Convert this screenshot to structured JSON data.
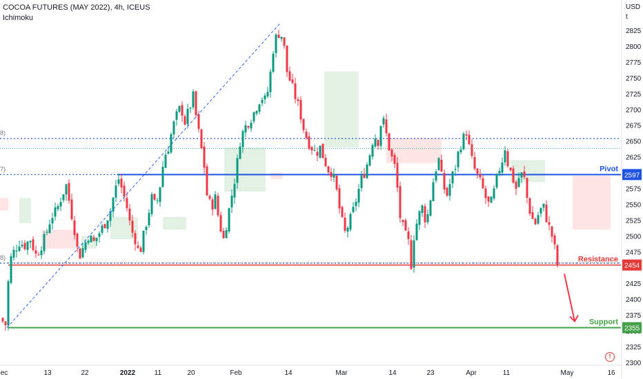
{
  "header": {
    "title": "COCOA FUTURES (MAY 2022), 4h, ICEUS",
    "indicator": "Ichimoku",
    "currency": "USD",
    "currency_sub": "t"
  },
  "chart_data": {
    "type": "candlestick",
    "y_axis": {
      "ylim": [
        2295,
        2850
      ],
      "ticks": [
        2825,
        2800,
        2775,
        2750,
        2725,
        2700,
        2675,
        2650,
        2625,
        2600,
        2575,
        2550,
        2525,
        2500,
        2475,
        2450,
        2425,
        2400,
        2375,
        2350,
        2325,
        2300
      ]
    },
    "x_axis": {
      "ticks": [
        {
          "label": "ec",
          "bold": false
        },
        {
          "label": "13",
          "bold": false
        },
        {
          "label": "22",
          "bold": false
        },
        {
          "label": "2022",
          "bold": true
        },
        {
          "label": "11",
          "bold": false
        },
        {
          "label": "20",
          "bold": false
        },
        {
          "label": "Feb",
          "bold": false
        },
        {
          "label": "14",
          "bold": false
        },
        {
          "label": "Mar",
          "bold": false
        },
        {
          "label": "14",
          "bold": false
        },
        {
          "label": "23",
          "bold": false
        },
        {
          "label": "Apr",
          "bold": false
        },
        {
          "label": "11",
          "bold": false
        },
        {
          "label": "May",
          "bold": false
        },
        {
          "label": "16",
          "bold": false
        }
      ]
    },
    "levels": [
      {
        "name": "Pivot",
        "value": 2597,
        "label": "2597",
        "color": "#1e53e5"
      },
      {
        "name": "Resistance",
        "value": 2454,
        "label": "2454",
        "color": "#e53935"
      },
      {
        "name": "Support",
        "value": 2355,
        "label": "2355",
        "color": "#43a047"
      }
    ],
    "fib_levels": [
      {
        "value": 2654,
        "left_label": "8)"
      },
      {
        "value": 2597,
        "left_label": "7)"
      },
      {
        "value": 2457,
        "left_label": "8)"
      }
    ],
    "guide_line": {
      "value": 2638
    },
    "trend_line": {
      "from": 2355,
      "to": 2835
    },
    "forecast_arrow": {
      "from": 2440,
      "to": 2365
    },
    "colors": {
      "up": "#26a69a",
      "up_body": "#089981",
      "down": "#f23645",
      "cloud_bull": "#dff0e0",
      "cloud_bear": "#fde2e2",
      "pivot": "#1e53e5",
      "resistance": "#e53935",
      "support": "#43a047",
      "trend": "#2962ff"
    },
    "candle_path": [
      [
        0,
        2370
      ],
      [
        8,
        2360
      ],
      [
        14,
        2460
      ],
      [
        20,
        2475
      ],
      [
        28,
        2490
      ],
      [
        36,
        2485
      ],
      [
        44,
        2495
      ],
      [
        52,
        2470
      ],
      [
        58,
        2480
      ],
      [
        66,
        2500
      ],
      [
        74,
        2530
      ],
      [
        82,
        2540
      ],
      [
        90,
        2565
      ],
      [
        96,
        2580
      ],
      [
        102,
        2545
      ],
      [
        108,
        2510
      ],
      [
        114,
        2465
      ],
      [
        120,
        2480
      ],
      [
        128,
        2500
      ],
      [
        136,
        2490
      ],
      [
        144,
        2505
      ],
      [
        152,
        2520
      ],
      [
        160,
        2540
      ],
      [
        166,
        2570
      ],
      [
        172,
        2590
      ],
      [
        178,
        2570
      ],
      [
        184,
        2545
      ],
      [
        190,
        2510
      ],
      [
        196,
        2495
      ],
      [
        202,
        2470
      ],
      [
        208,
        2500
      ],
      [
        214,
        2530
      ],
      [
        220,
        2560
      ],
      [
        226,
        2545
      ],
      [
        232,
        2580
      ],
      [
        238,
        2625
      ],
      [
        244,
        2640
      ],
      [
        250,
        2670
      ],
      [
        256,
        2690
      ],
      [
        262,
        2705
      ],
      [
        268,
        2680
      ],
      [
        274,
        2700
      ],
      [
        280,
        2720
      ],
      [
        284,
        2690
      ],
      [
        290,
        2650
      ],
      [
        296,
        2610
      ],
      [
        300,
        2565
      ],
      [
        306,
        2545
      ],
      [
        312,
        2560
      ],
      [
        318,
        2520
      ],
      [
        324,
        2495
      ],
      [
        330,
        2530
      ],
      [
        336,
        2565
      ],
      [
        342,
        2600
      ],
      [
        348,
        2650
      ],
      [
        354,
        2670
      ],
      [
        360,
        2680
      ],
      [
        366,
        2690
      ],
      [
        372,
        2705
      ],
      [
        378,
        2720
      ],
      [
        384,
        2715
      ],
      [
        390,
        2735
      ],
      [
        394,
        2780
      ],
      [
        398,
        2810
      ],
      [
        404,
        2820
      ],
      [
        410,
        2815
      ],
      [
        416,
        2760
      ],
      [
        422,
        2740
      ],
      [
        428,
        2720
      ],
      [
        434,
        2700
      ],
      [
        440,
        2670
      ],
      [
        446,
        2650
      ],
      [
        452,
        2640
      ],
      [
        458,
        2630
      ],
      [
        464,
        2640
      ],
      [
        470,
        2620
      ],
      [
        476,
        2605
      ],
      [
        482,
        2600
      ],
      [
        488,
        2570
      ],
      [
        494,
        2530
      ],
      [
        500,
        2505
      ],
      [
        506,
        2520
      ],
      [
        512,
        2540
      ],
      [
        518,
        2565
      ],
      [
        524,
        2590
      ],
      [
        530,
        2605
      ],
      [
        536,
        2630
      ],
      [
        542,
        2660
      ],
      [
        548,
        2650
      ],
      [
        554,
        2690
      ],
      [
        560,
        2660
      ],
      [
        566,
        2630
      ],
      [
        572,
        2610
      ],
      [
        576,
        2575
      ],
      [
        580,
        2530
      ],
      [
        586,
        2505
      ],
      [
        592,
        2490
      ],
      [
        596,
        2455
      ],
      [
        600,
        2500
      ],
      [
        606,
        2530
      ],
      [
        612,
        2545
      ],
      [
        618,
        2520
      ],
      [
        624,
        2560
      ],
      [
        630,
        2600
      ],
      [
        636,
        2620
      ],
      [
        642,
        2580
      ],
      [
        648,
        2565
      ],
      [
        654,
        2590
      ],
      [
        660,
        2610
      ],
      [
        666,
        2640
      ],
      [
        672,
        2655
      ],
      [
        676,
        2665
      ],
      [
        680,
        2640
      ],
      [
        686,
        2610
      ],
      [
        692,
        2595
      ],
      [
        698,
        2580
      ],
      [
        704,
        2560
      ],
      [
        710,
        2545
      ],
      [
        716,
        2570
      ],
      [
        722,
        2600
      ],
      [
        728,
        2620
      ],
      [
        732,
        2640
      ],
      [
        736,
        2615
      ],
      [
        742,
        2595
      ],
      [
        748,
        2575
      ],
      [
        754,
        2600
      ],
      [
        760,
        2590
      ],
      [
        764,
        2560
      ],
      [
        770,
        2530
      ],
      [
        776,
        2520
      ],
      [
        782,
        2540
      ],
      [
        788,
        2545
      ],
      [
        794,
        2520
      ],
      [
        800,
        2500
      ],
      [
        806,
        2470
      ],
      [
        810,
        2440
      ]
    ],
    "cloud": [
      {
        "from": 0,
        "to": 12,
        "top": 2560,
        "bottom": 2540,
        "bull": false
      },
      {
        "from": 28,
        "to": 45,
        "top": 2560,
        "bottom": 2520,
        "bull": true
      },
      {
        "from": 60,
        "to": 110,
        "top": 2510,
        "bottom": 2480,
        "bull": false
      },
      {
        "from": 118,
        "to": 140,
        "top": 2500,
        "bottom": 2480,
        "bull": true
      },
      {
        "from": 160,
        "to": 200,
        "top": 2530,
        "bottom": 2495,
        "bull": true
      },
      {
        "from": 236,
        "to": 270,
        "top": 2530,
        "bottom": 2510,
        "bull": true
      },
      {
        "from": 325,
        "to": 385,
        "top": 2640,
        "bottom": 2570,
        "bull": true
      },
      {
        "from": 392,
        "to": 410,
        "top": 2600,
        "bottom": 2590,
        "bull": false
      },
      {
        "from": 470,
        "to": 520,
        "top": 2760,
        "bottom": 2640,
        "bull": true
      },
      {
        "from": 560,
        "to": 640,
        "top": 2655,
        "bottom": 2615,
        "bull": false
      },
      {
        "from": 740,
        "to": 790,
        "top": 2620,
        "bottom": 2585,
        "bull": true
      },
      {
        "from": 830,
        "to": 885,
        "top": 2595,
        "bottom": 2510,
        "bull": false
      }
    ]
  }
}
